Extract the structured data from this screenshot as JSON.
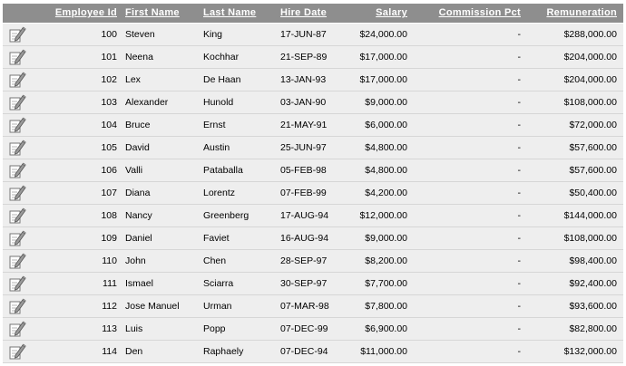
{
  "columns": {
    "employee_id": "Employee Id",
    "first_name": "First Name",
    "last_name": "Last Name",
    "hire_date": "Hire Date",
    "salary": "Salary",
    "commission_pct": "Commission Pct",
    "remuneration": "Remuneration"
  },
  "rows": [
    {
      "edit_icon": "edit-pencil-icon",
      "employee_id": "100",
      "first_name": "Steven",
      "last_name": "King",
      "hire_date": "17-JUN-87",
      "salary": "$24,000.00",
      "commission_pct": "-",
      "remuneration": "$288,000.00"
    },
    {
      "edit_icon": "edit-pencil-icon",
      "employee_id": "101",
      "first_name": "Neena",
      "last_name": "Kochhar",
      "hire_date": "21-SEP-89",
      "salary": "$17,000.00",
      "commission_pct": "-",
      "remuneration": "$204,000.00"
    },
    {
      "edit_icon": "edit-pencil-icon",
      "employee_id": "102",
      "first_name": "Lex",
      "last_name": "De Haan",
      "hire_date": "13-JAN-93",
      "salary": "$17,000.00",
      "commission_pct": "-",
      "remuneration": "$204,000.00"
    },
    {
      "edit_icon": "edit-pencil-icon",
      "employee_id": "103",
      "first_name": "Alexander",
      "last_name": "Hunold",
      "hire_date": "03-JAN-90",
      "salary": "$9,000.00",
      "commission_pct": "-",
      "remuneration": "$108,000.00"
    },
    {
      "edit_icon": "edit-pencil-icon",
      "employee_id": "104",
      "first_name": "Bruce",
      "last_name": "Ernst",
      "hire_date": "21-MAY-91",
      "salary": "$6,000.00",
      "commission_pct": "-",
      "remuneration": "$72,000.00"
    },
    {
      "edit_icon": "edit-pencil-icon",
      "employee_id": "105",
      "first_name": "David",
      "last_name": "Austin",
      "hire_date": "25-JUN-97",
      "salary": "$4,800.00",
      "commission_pct": "-",
      "remuneration": "$57,600.00"
    },
    {
      "edit_icon": "edit-pencil-icon",
      "employee_id": "106",
      "first_name": "Valli",
      "last_name": "Pataballa",
      "hire_date": "05-FEB-98",
      "salary": "$4,800.00",
      "commission_pct": "-",
      "remuneration": "$57,600.00"
    },
    {
      "edit_icon": "edit-pencil-icon",
      "employee_id": "107",
      "first_name": "Diana",
      "last_name": "Lorentz",
      "hire_date": "07-FEB-99",
      "salary": "$4,200.00",
      "commission_pct": "-",
      "remuneration": "$50,400.00"
    },
    {
      "edit_icon": "edit-pencil-icon",
      "employee_id": "108",
      "first_name": "Nancy",
      "last_name": "Greenberg",
      "hire_date": "17-AUG-94",
      "salary": "$12,000.00",
      "commission_pct": "-",
      "remuneration": "$144,000.00"
    },
    {
      "edit_icon": "edit-pencil-icon",
      "employee_id": "109",
      "first_name": "Daniel",
      "last_name": "Faviet",
      "hire_date": "16-AUG-94",
      "salary": "$9,000.00",
      "commission_pct": "-",
      "remuneration": "$108,000.00"
    },
    {
      "edit_icon": "edit-pencil-icon",
      "employee_id": "110",
      "first_name": "John",
      "last_name": "Chen",
      "hire_date": "28-SEP-97",
      "salary": "$8,200.00",
      "commission_pct": "-",
      "remuneration": "$98,400.00"
    },
    {
      "edit_icon": "edit-pencil-icon",
      "employee_id": "111",
      "first_name": "Ismael",
      "last_name": "Sciarra",
      "hire_date": "30-SEP-97",
      "salary": "$7,700.00",
      "commission_pct": "-",
      "remuneration": "$92,400.00"
    },
    {
      "edit_icon": "edit-pencil-icon",
      "employee_id": "112",
      "first_name": "Jose Manuel",
      "last_name": "Urman",
      "hire_date": "07-MAR-98",
      "salary": "$7,800.00",
      "commission_pct": "-",
      "remuneration": "$93,600.00"
    },
    {
      "edit_icon": "edit-pencil-icon",
      "employee_id": "113",
      "first_name": "Luis",
      "last_name": "Popp",
      "hire_date": "07-DEC-99",
      "salary": "$6,900.00",
      "commission_pct": "-",
      "remuneration": "$82,800.00"
    },
    {
      "edit_icon": "edit-pencil-icon",
      "employee_id": "114",
      "first_name": "Den",
      "last_name": "Raphaely",
      "hire_date": "07-DEC-94",
      "salary": "$11,000.00",
      "commission_pct": "-",
      "remuneration": "$132,000.00"
    }
  ],
  "colors": {
    "header_background": "#8e8e8e",
    "header_text": "#ffffff",
    "row_background": "#eeeeee",
    "row_divider": "#d6d6d6"
  }
}
